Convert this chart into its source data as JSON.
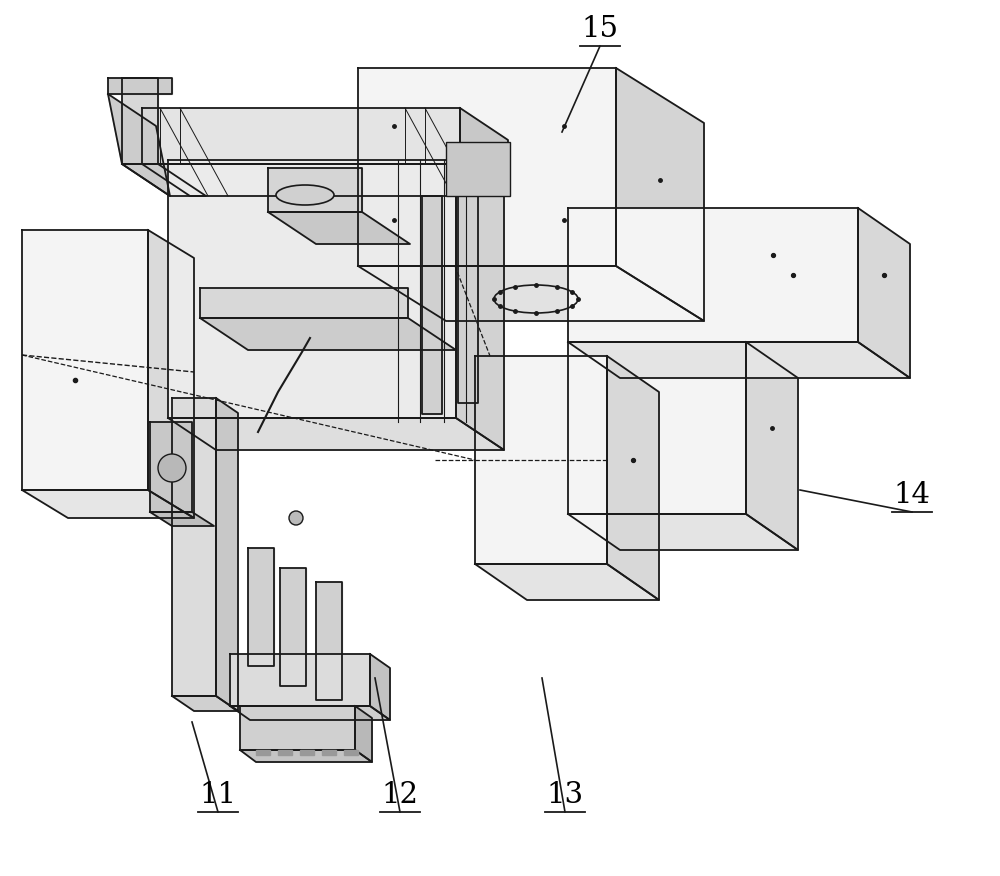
{
  "bg_color": "#ffffff",
  "lc": "#1a1a1a",
  "fig_w": 10.0,
  "fig_h": 8.76,
  "dpi": 100
}
